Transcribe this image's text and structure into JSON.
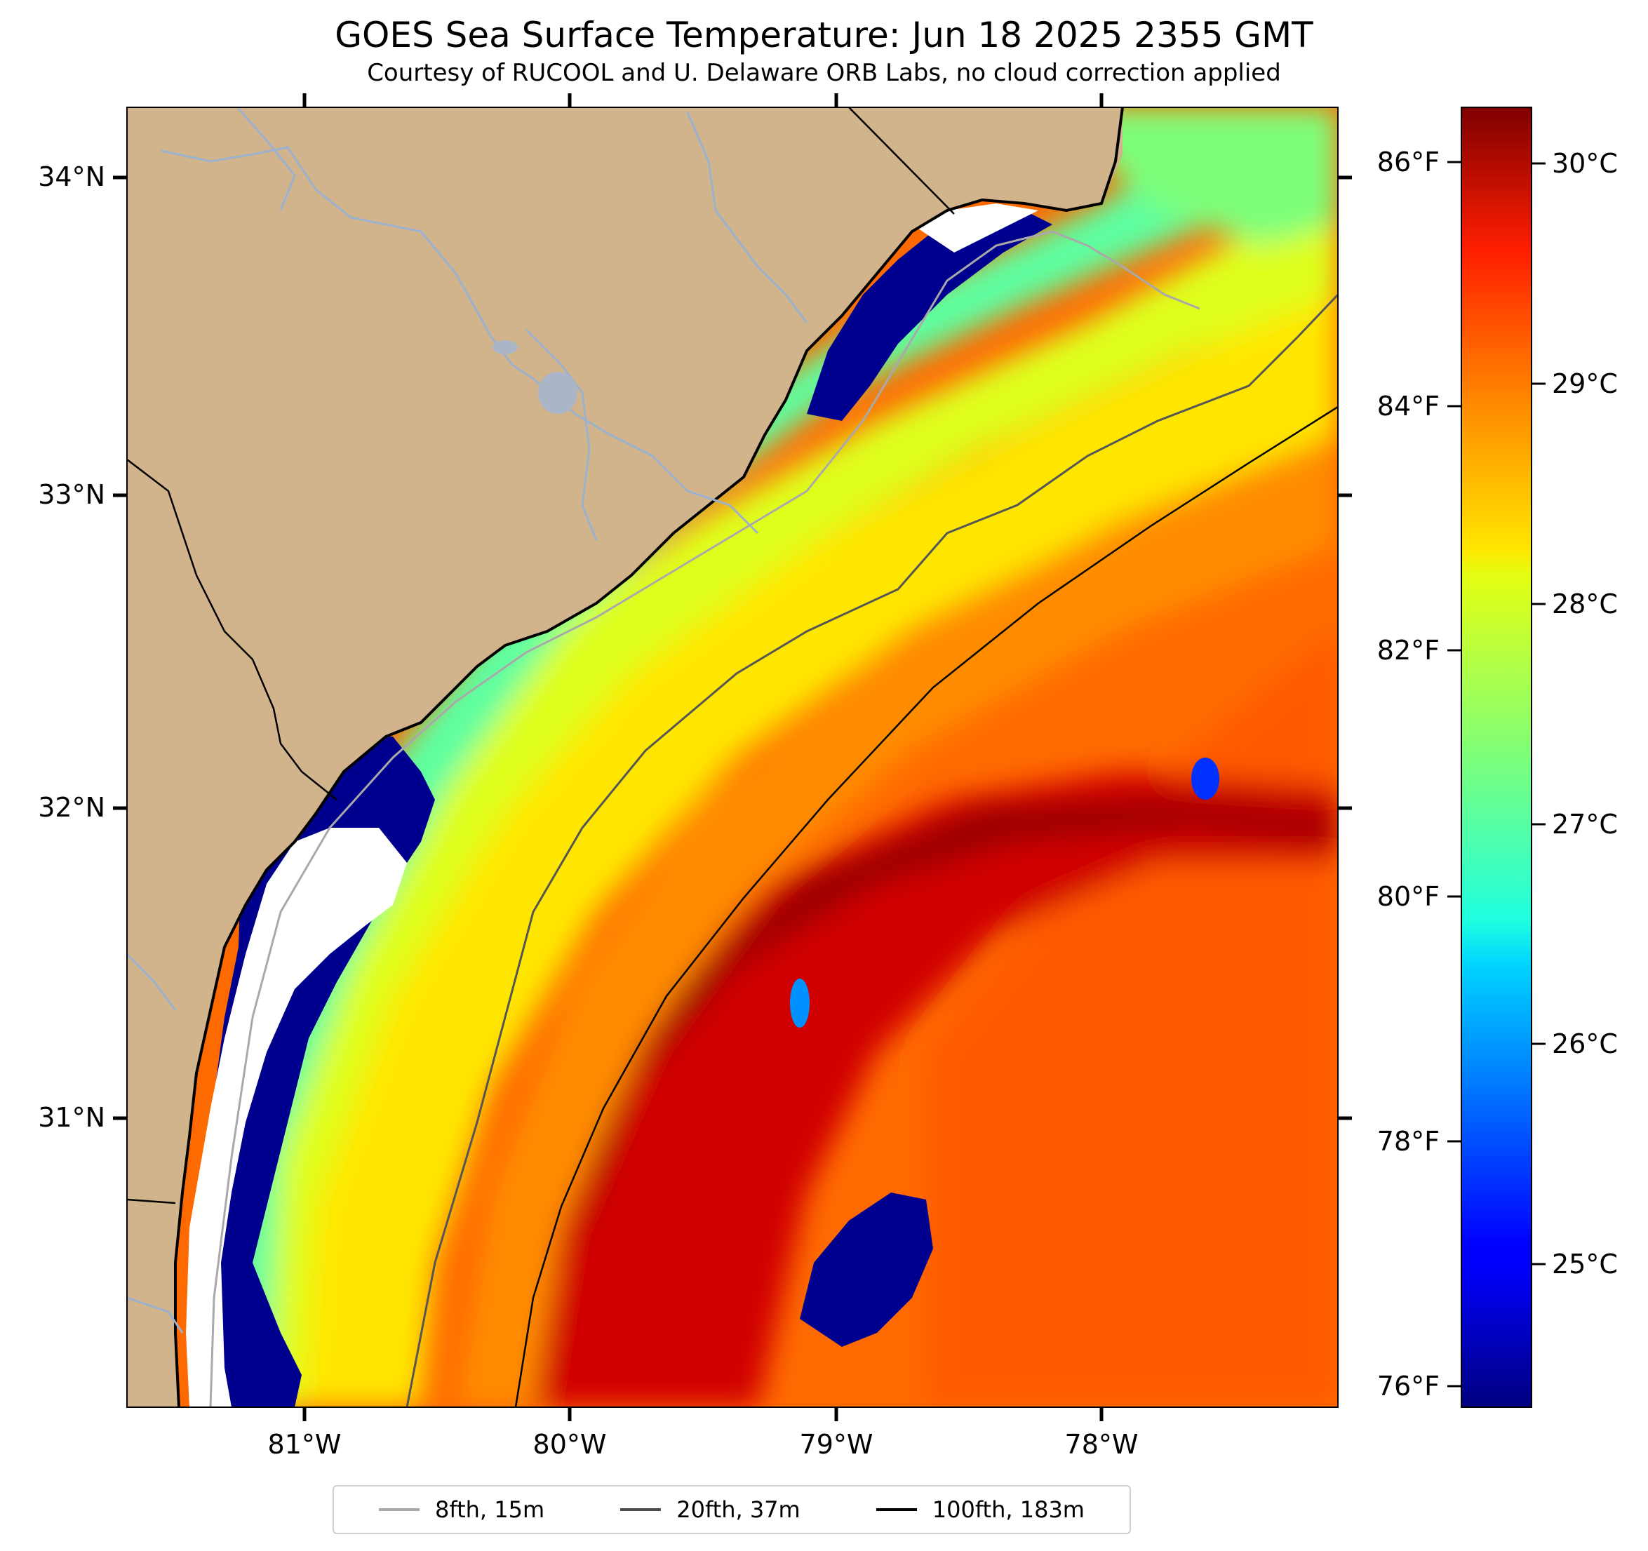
{
  "title": "GOES Sea Surface Temperature: Jun 18 2025 2355 GMT",
  "subtitle": "Courtesy of RUCOOL and U. Delaware ORB Labs, no cloud correction applied",
  "map": {
    "lat_labels": [
      "34°N",
      "33°N",
      "32°N",
      "31°N"
    ],
    "lon_labels": [
      "81°W",
      "80°W",
      "79°W",
      "78°W"
    ],
    "lat_range": [
      30.1,
      34.2
    ],
    "lon_range": [
      -81.67,
      -77.1
    ],
    "land_color": "#d2b48c",
    "no_data_color": "#ffffff",
    "coastline_color": "#000000",
    "river_color": "#9bb1cd"
  },
  "colorbar": {
    "colormap": "jet",
    "celsius_labels": [
      "30°C",
      "29°C",
      "28°C",
      "27°C",
      "26°C",
      "25°C"
    ],
    "fahrenheit_labels": [
      "86°F",
      "84°F",
      "82°F",
      "80°F",
      "78°F",
      "76°F"
    ],
    "celsius_range": [
      24.3,
      30.2
    ]
  },
  "legend": {
    "items": [
      {
        "label": "8fth, 15m",
        "color": "#a9a9a9"
      },
      {
        "label": "20fth, 37m",
        "color": "#4d4d4d"
      },
      {
        "label": "100fth, 183m",
        "color": "#000000"
      }
    ]
  }
}
